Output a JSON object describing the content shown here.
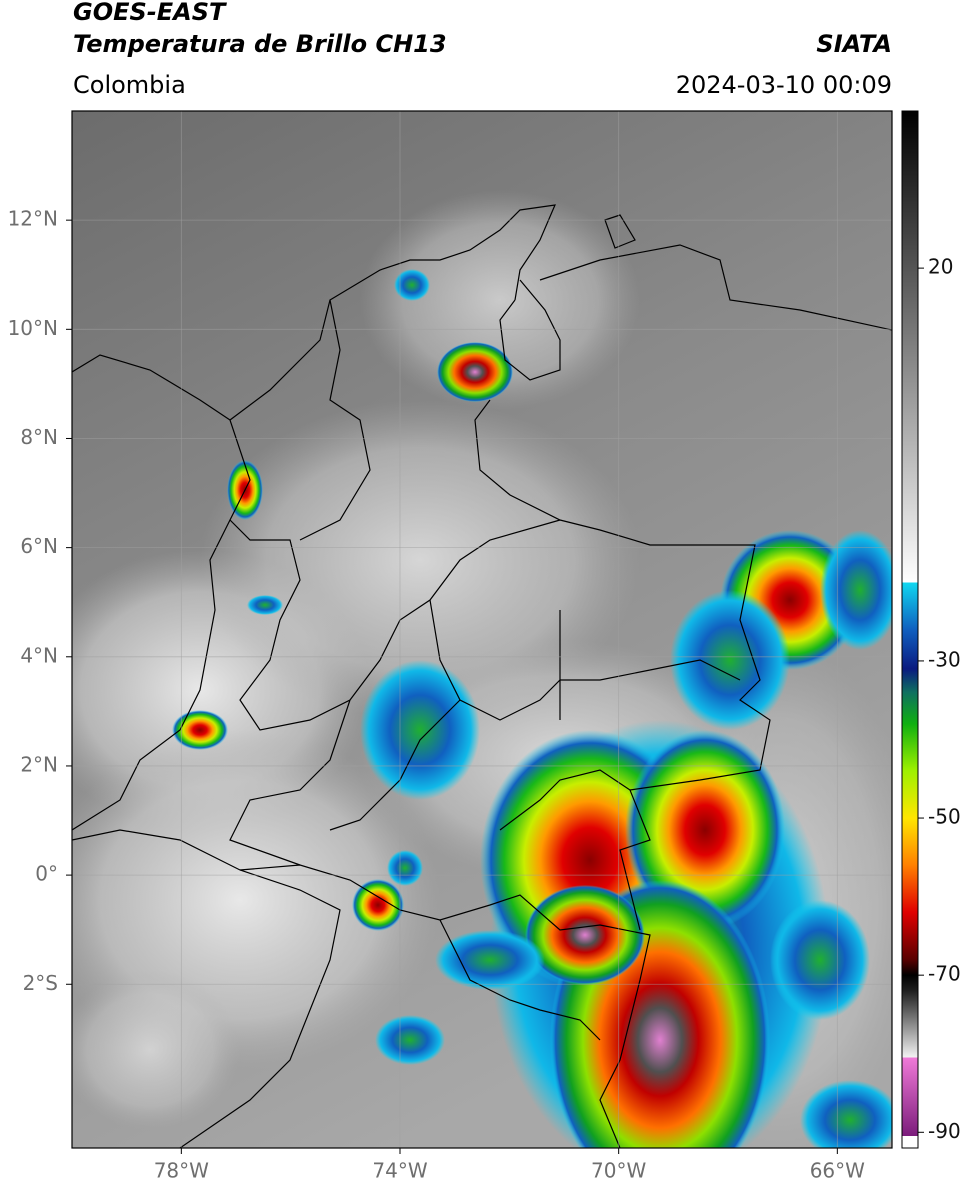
{
  "header": {
    "title": "GOES-EAST",
    "subtitle": "Temperatura de Brillo CH13",
    "source": "SIATA",
    "region": "Colombia",
    "datetime": "2024-03-10 00:09"
  },
  "chart_data": {
    "type": "map",
    "xlim": [
      -80,
      -65
    ],
    "ylim": [
      -5,
      14
    ],
    "xticks": [
      {
        "value": -78,
        "label": "78°W"
      },
      {
        "value": -74,
        "label": "74°W"
      },
      {
        "value": -70,
        "label": "70°W"
      },
      {
        "value": -66,
        "label": "66°W"
      }
    ],
    "yticks": [
      {
        "value": 12,
        "label": "12°N"
      },
      {
        "value": 10,
        "label": "10°N"
      },
      {
        "value": 8,
        "label": "8°N"
      },
      {
        "value": 6,
        "label": "6°N"
      },
      {
        "value": 4,
        "label": "4°N"
      },
      {
        "value": 2,
        "label": "2°N"
      },
      {
        "value": 0,
        "label": "0°"
      },
      {
        "value": -2,
        "label": "2°S"
      }
    ],
    "grid": true,
    "colorbar": {
      "lim": [
        -92,
        40
      ],
      "ticks": [
        20,
        -30,
        -50,
        -70,
        -90
      ],
      "stops": [
        {
          "value": -92,
          "color": "#ffffff"
        },
        {
          "value": -90.5,
          "color": "#ffffff"
        },
        {
          "value": -90.5,
          "color": "#7b1c7b"
        },
        {
          "value": -80.5,
          "color": "#f07ad8"
        },
        {
          "value": -80.5,
          "color": "#f4f4f4"
        },
        {
          "value": -72,
          "color": "#202020"
        },
        {
          "value": -70,
          "color": "#000000"
        },
        {
          "value": -68,
          "color": "#5a0000"
        },
        {
          "value": -62,
          "color": "#e00000"
        },
        {
          "value": -56,
          "color": "#ff8000"
        },
        {
          "value": -50,
          "color": "#ffe600"
        },
        {
          "value": -44,
          "color": "#9ff000"
        },
        {
          "value": -38,
          "color": "#10b010"
        },
        {
          "value": -34,
          "color": "#0f7060"
        },
        {
          "value": -31,
          "color": "#0a1a80"
        },
        {
          "value": -26,
          "color": "#1060c0"
        },
        {
          "value": -20,
          "color": "#10d8f0"
        },
        {
          "value": -20,
          "color": "#ffffff"
        },
        {
          "value": 40,
          "color": "#000000"
        }
      ]
    }
  }
}
